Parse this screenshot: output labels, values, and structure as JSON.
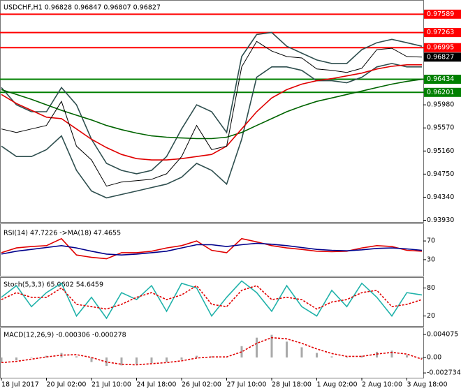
{
  "chart_data": [
    {
      "type": "line",
      "title": "USDCHF,H1  0.96828 0.96847 0.96807 0.96827",
      "categories": [
        "18 Jul 2017",
        null,
        null,
        "20 Jul 02:00",
        null,
        null,
        "21 Jul 10:00",
        null,
        null,
        "24 Jul 18:00",
        null,
        null,
        "26 Jul 02:00",
        null,
        null,
        "27 Jul 10:00",
        null,
        null,
        "28 Jul 18:00",
        null,
        null,
        "1 Aug 02:00",
        null,
        null,
        "2 Aug 10:00",
        null,
        null,
        "3 Aug 18:00",
        null
      ],
      "ylim": [
        0.93924,
        0.97816
      ],
      "yticks": [
        {
          "value": 0.9598,
          "label": "0.95980"
        },
        {
          "value": 0.9557,
          "label": "0.95570"
        },
        {
          "value": 0.9516,
          "label": "0.95160"
        },
        {
          "value": 0.9475,
          "label": "0.94750"
        },
        {
          "value": 0.9434,
          "label": "0.94340"
        },
        {
          "value": 0.9393,
          "label": "0.93930"
        }
      ],
      "levels": [
        {
          "value": 0.97589,
          "color": "#ff0000"
        },
        {
          "value": 0.97263,
          "color": "#ff0000"
        },
        {
          "value": 0.96995,
          "color": "#ff0000"
        },
        {
          "value": 0.96434,
          "color": "#008000"
        },
        {
          "value": 0.96201,
          "color": "#008000"
        }
      ],
      "last": 0.96827,
      "series": [
        {
          "color": "#2f4f4f",
          "values": [
            0.96286,
            0.9598,
            0.95858,
            0.95858,
            0.96286,
            0.9598,
            0.95368,
            0.9494,
            0.94817,
            0.94756,
            0.94817,
            0.95062,
            0.95552,
            0.9598,
            0.95858,
            0.9549,
            0.96837,
            0.97228,
            0.97265,
            0.9702,
            0.96898,
            0.96776,
            0.96714,
            0.96714,
            0.96959,
            0.97082,
            0.97143,
            0.97082,
            0.9702
          ]
        },
        {
          "color": "#2f4f4f",
          "values": [
            0.95246,
            0.95062,
            0.95062,
            0.95184,
            0.95429,
            0.94817,
            0.9445,
            0.94328,
            0.94389,
            0.9445,
            0.94511,
            0.94572,
            0.94695,
            0.9494,
            0.94817,
            0.94572,
            0.95368,
            0.9647,
            0.96653,
            0.96653,
            0.96592,
            0.96408,
            0.96408,
            0.96372,
            0.9647,
            0.96653,
            0.96714,
            0.96653,
            0.96653
          ]
        },
        {
          "color": "#006400",
          "values": [
            0.96249,
            0.96164,
            0.96078,
            0.9598,
            0.95882,
            0.95796,
            0.95711,
            0.95613,
            0.95539,
            0.95478,
            0.95429,
            0.95405,
            0.95392,
            0.9538,
            0.9538,
            0.95405,
            0.9549,
            0.95613,
            0.95735,
            0.95858,
            0.95956,
            0.96041,
            0.96102,
            0.96164,
            0.96225,
            0.96286,
            0.96347,
            0.96396,
            0.96433
          ]
        },
        {
          "color": "#e00000",
          "values": [
            0.96164,
            0.96004,
            0.95882,
            0.9576,
            0.95735,
            0.95552,
            0.95368,
            0.95221,
            0.95099,
            0.95025,
            0.95001,
            0.95001,
            0.95025,
            0.95062,
            0.95099,
            0.95246,
            0.95552,
            0.95858,
            0.96102,
            0.96249,
            0.96347,
            0.96408,
            0.96445,
            0.96494,
            0.96543,
            0.96616,
            0.96665,
            0.9669,
            0.9669
          ]
        },
        {
          "color": "#000000",
          "values": [
            0.95552,
            0.9549,
            0.95552,
            0.95613,
            0.96041,
            0.95246,
            0.95001,
            0.94536,
            0.94609,
            0.94634,
            0.94658,
            0.94756,
            0.95062,
            0.95613,
            0.95184,
            0.95246,
            0.96653,
            0.97106,
            0.96935,
            0.96837,
            0.96812,
            0.96616,
            0.96592,
            0.96555,
            0.96629,
            0.96959,
            0.96984,
            0.96837,
            0.96827
          ]
        }
      ]
    },
    {
      "type": "line",
      "title": "RSI(14) 47.7226  ->MA(18) 47.4655",
      "ylim": [
        0,
        100
      ],
      "yticks": [
        70,
        30
      ],
      "series": [
        {
          "color": "#e00000",
          "values": [
            45,
            55,
            58,
            60,
            75,
            40,
            35,
            32,
            45,
            45,
            48,
            55,
            60,
            70,
            50,
            45,
            75,
            68,
            60,
            55,
            52,
            48,
            47,
            48,
            55,
            60,
            58,
            50,
            48
          ]
        },
        {
          "color": "#00008b",
          "values": [
            42,
            48,
            52,
            56,
            60,
            55,
            48,
            42,
            40,
            42,
            45,
            48,
            55,
            62,
            62,
            58,
            62,
            65,
            63,
            60,
            56,
            52,
            50,
            49,
            51,
            54,
            55,
            53,
            50
          ]
        }
      ]
    },
    {
      "type": "line",
      "title": "Stoch(5,3,3) 65.0602 54.6459",
      "ylim": [
        0,
        100
      ],
      "yticks": [
        80,
        20
      ],
      "series": [
        {
          "color": "#20b2aa",
          "values": [
            60,
            85,
            40,
            70,
            90,
            20,
            60,
            15,
            70,
            55,
            85,
            30,
            90,
            80,
            20,
            60,
            95,
            70,
            30,
            85,
            40,
            20,
            75,
            40,
            90,
            60,
            20,
            70,
            65
          ]
        },
        {
          "color": "#e00000",
          "dash": true,
          "values": [
            55,
            70,
            60,
            60,
            80,
            45,
            40,
            35,
            45,
            60,
            70,
            55,
            65,
            85,
            45,
            40,
            75,
            85,
            55,
            60,
            55,
            35,
            50,
            55,
            70,
            75,
            40,
            45,
            55
          ]
        }
      ]
    },
    {
      "type": "bar",
      "title": "MACD(12,26,9) -0.000306 -0.000278",
      "ylim": [
        -0.00346,
        0.00506
      ],
      "yticks": [
        0.004075,
        {
          "value": 0,
          "label": "0.00"
        },
        -0.002734
      ],
      "color": "#a9a9a9",
      "values": [
        -0.0008,
        -0.0005,
        0.0001,
        0.0003,
        0.0008,
        0.0002,
        -0.0008,
        -0.0015,
        -0.0014,
        -0.0012,
        -0.001,
        -0.0008,
        -0.0004,
        0.0003,
        0.0002,
        0.0001,
        0.002,
        0.0035,
        0.004,
        0.0028,
        0.0018,
        0.0008,
        0.0002,
        -0.0001,
        0.0003,
        0.001,
        0.0012,
        0.0004,
        -0.0003
      ],
      "series": [
        {
          "color": "#e00000",
          "dash": true,
          "values": [
            -0.0009,
            -0.0007,
            -0.0003,
            0.0001,
            0.0004,
            0.0005,
            0,
            -0.0008,
            -0.0012,
            -0.0013,
            -0.0011,
            -0.0009,
            -0.0006,
            -0.0001,
            0.0001,
            0.0001,
            0.001,
            0.0025,
            0.0035,
            0.0033,
            0.0025,
            0.0015,
            0.0007,
            0.0002,
            0.0002,
            0.0006,
            0.0009,
            0.0006,
            -0.0003
          ]
        }
      ]
    }
  ]
}
